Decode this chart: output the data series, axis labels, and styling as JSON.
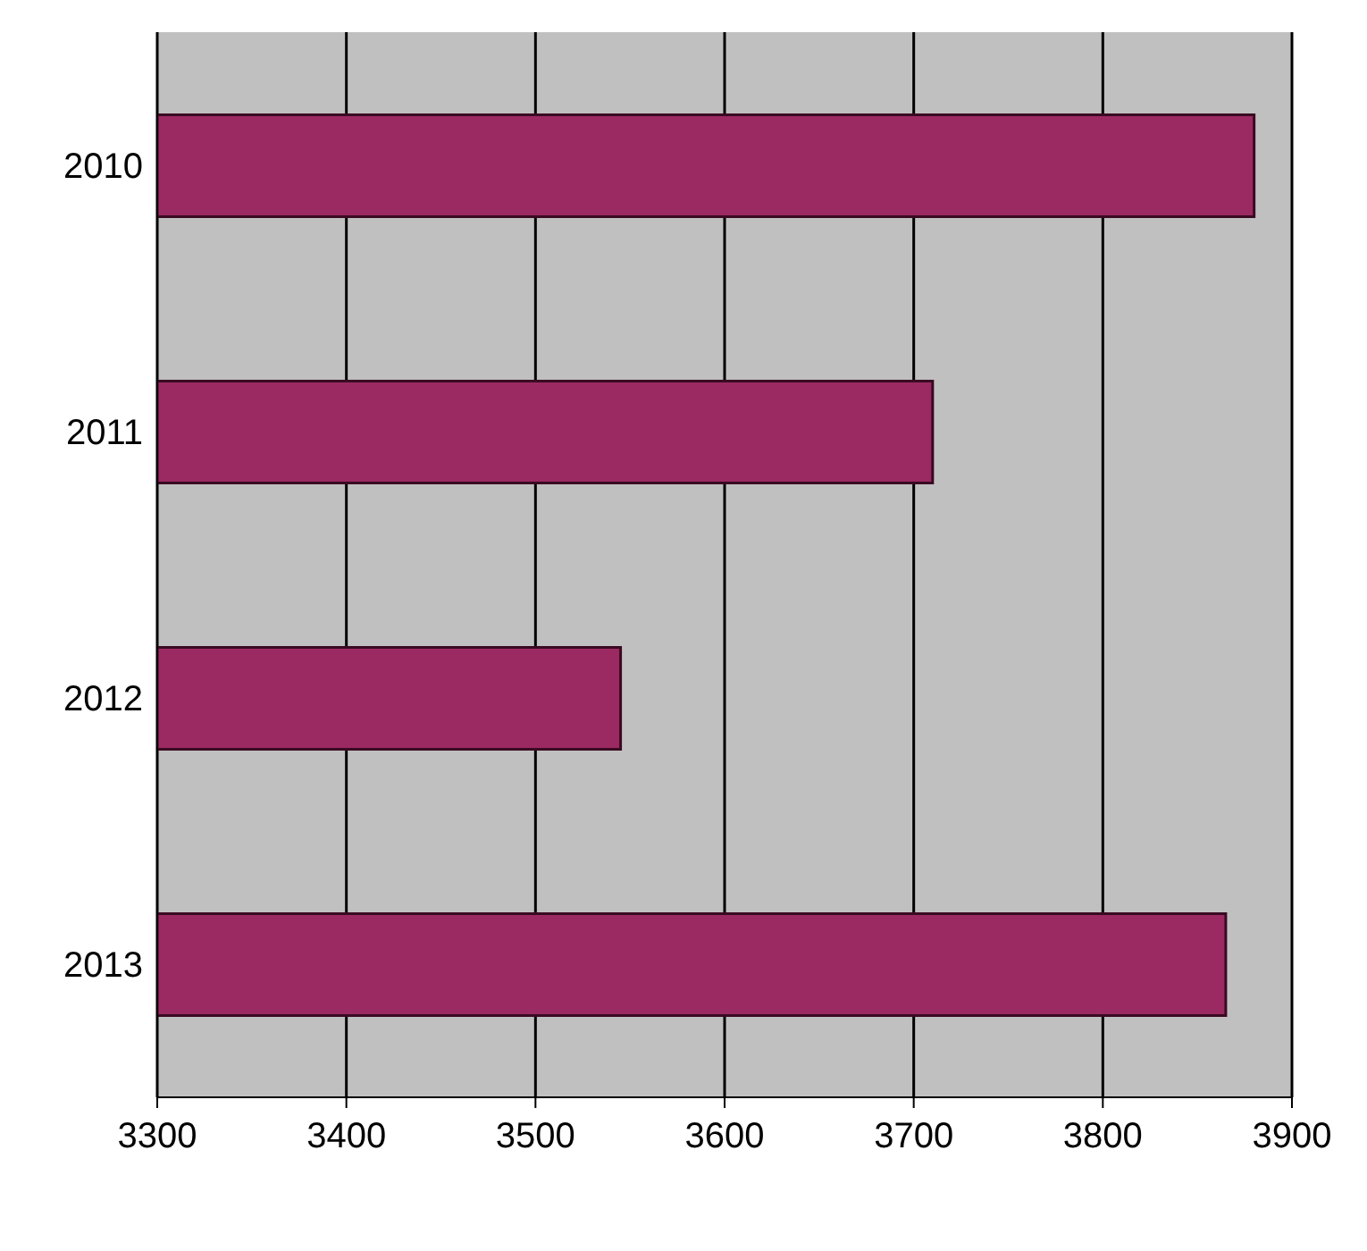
{
  "chart_data": {
    "type": "bar",
    "orientation": "horizontal",
    "categories": [
      "2010",
      "2011",
      "2012",
      "2013"
    ],
    "values": [
      3880,
      3710,
      3545,
      3865
    ],
    "color": "#9b2a62",
    "xlim": [
      3300,
      3900
    ],
    "xticks": [
      3300,
      3400,
      3500,
      3600,
      3700,
      3800,
      3900
    ],
    "grid": "x"
  }
}
